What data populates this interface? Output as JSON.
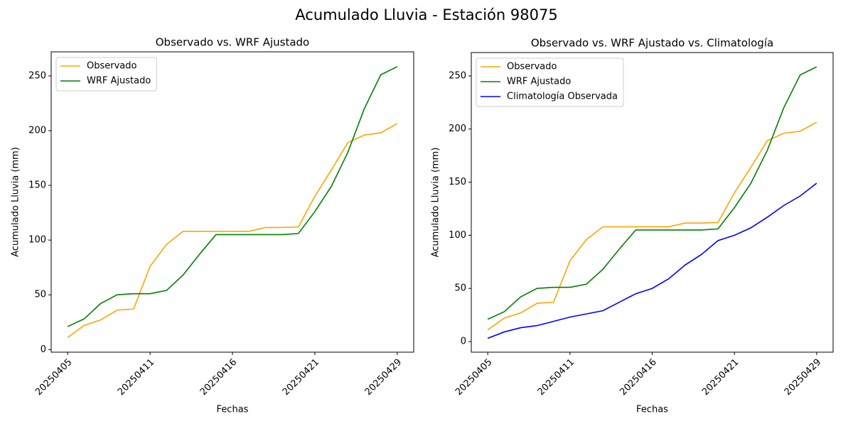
{
  "title": "Acumulado Lluvia - Estación 98075",
  "chart_data": [
    {
      "type": "line",
      "title": "Observado vs. WRF Ajustado",
      "xlabel": "Fechas",
      "ylabel": "Acumulado Lluvia (mm)",
      "categories": [
        "20250405",
        null,
        null,
        null,
        null,
        "20250411",
        null,
        null,
        null,
        null,
        "20250416",
        null,
        null,
        null,
        null,
        "20250421",
        null,
        null,
        null,
        null,
        "20250429"
      ],
      "series": [
        {
          "name": "Observado",
          "color": "#ffa500",
          "values": [
            11,
            22,
            27,
            36,
            37,
            76,
            96,
            108,
            108,
            108,
            108,
            108,
            111.5,
            111.5,
            112,
            140,
            164,
            189,
            196,
            198,
            206.5
          ]
        },
        {
          "name": "WRF Ajustado",
          "color": "#008000",
          "values": [
            21,
            28,
            42,
            50,
            51,
            51,
            54,
            68,
            87,
            105,
            105,
            105,
            105,
            105,
            106,
            126,
            149,
            180,
            220,
            251,
            258.5
          ]
        }
      ],
      "ylim": [
        -2.4,
        272
      ],
      "yticks": [
        0,
        50,
        100,
        150,
        200,
        250
      ],
      "legend": "upper left"
    },
    {
      "type": "line",
      "title": "Observado vs. WRF Ajustado vs. Climatología",
      "xlabel": "Fechas",
      "ylabel": "Acumulado Lluvia (mm)",
      "categories": [
        "20250405",
        null,
        null,
        null,
        null,
        "20250411",
        null,
        null,
        null,
        null,
        "20250416",
        null,
        null,
        null,
        null,
        "20250421",
        null,
        null,
        null,
        null,
        "20250429"
      ],
      "series": [
        {
          "name": "Observado",
          "color": "#ffa500",
          "values": [
            11,
            22,
            27,
            36,
            37,
            76,
            96,
            108,
            108,
            108,
            108,
            108,
            111.5,
            111.5,
            112,
            140,
            164,
            189,
            196,
            198,
            206.5
          ]
        },
        {
          "name": "WRF Ajustado",
          "color": "#008000",
          "values": [
            21,
            28,
            42,
            50,
            51,
            51,
            54,
            68,
            87,
            105,
            105,
            105,
            105,
            105,
            106,
            126,
            149,
            180,
            220,
            251,
            258.5
          ]
        },
        {
          "name": "Climatología Observada",
          "color": "#0000ff",
          "values": [
            3,
            9,
            13,
            15,
            19,
            23,
            26,
            29,
            37,
            45,
            50,
            59,
            72,
            82,
            95,
            100,
            107,
            117,
            128,
            137,
            149
          ]
        }
      ],
      "ylim": [
        -10,
        272
      ],
      "yticks": [
        0,
        50,
        100,
        150,
        200,
        250
      ],
      "legend": "upper left"
    }
  ]
}
